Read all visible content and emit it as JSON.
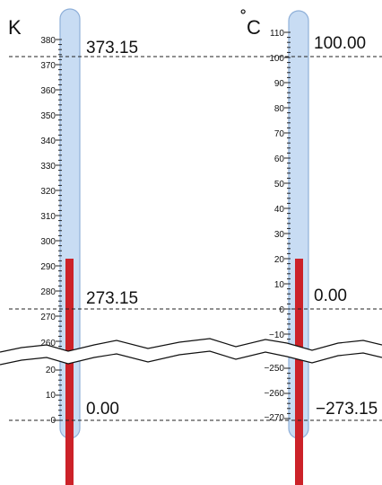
{
  "kelvin": {
    "unit": "K",
    "ticks_upper": [
      "380",
      "370",
      "360",
      "350",
      "340",
      "330",
      "320",
      "310",
      "300",
      "290",
      "280",
      "270",
      "260"
    ],
    "ticks_lower": [
      "20",
      "10",
      "0"
    ],
    "labels": {
      "boil": "373.15",
      "freeze": "273.15",
      "zero": "0.00"
    },
    "reading": 293
  },
  "celsius": {
    "unit_degree": "˚",
    "unit": "C",
    "ticks_upper": [
      "110",
      "100",
      "90",
      "80",
      "70",
      "60",
      "50",
      "40",
      "30",
      "20",
      "10",
      "0",
      "−10"
    ],
    "ticks_lower": [
      "−250",
      "−260",
      "−270"
    ],
    "labels": {
      "boil": "100.00",
      "freeze": "0.00",
      "zero": "−273.15"
    },
    "reading": 20
  },
  "colors": {
    "tube_fill": "#c8dcf3",
    "tube_stroke": "#8fb0d9",
    "mercury": "#cc2229",
    "reference_line": "#222222"
  }
}
